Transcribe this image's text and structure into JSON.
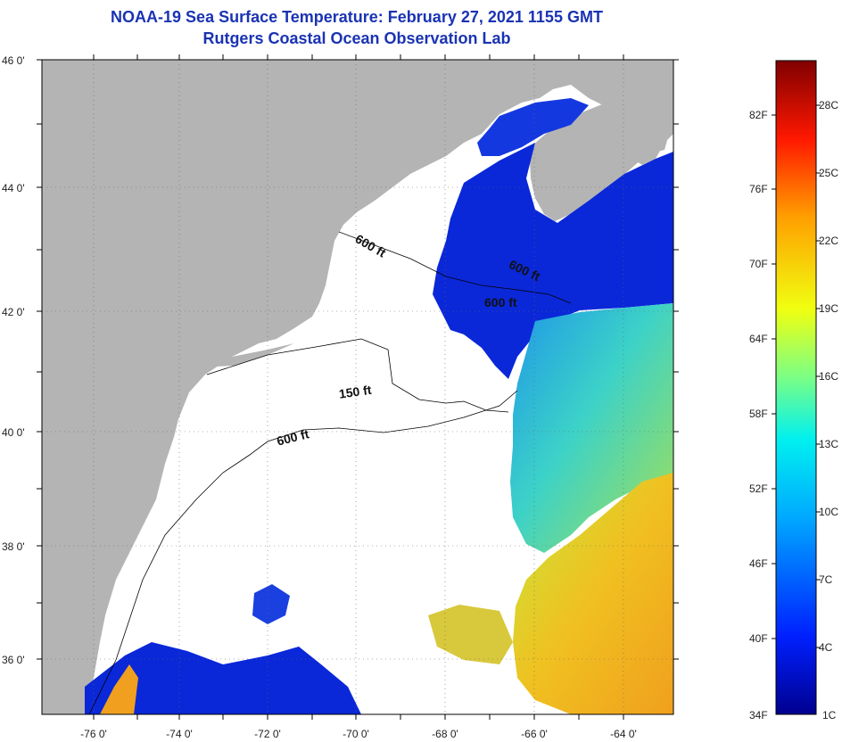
{
  "title": "NOAA-19 Sea Surface Temperature:  February 27, 2021 1155 GMT",
  "subtitle": "Rutgers Coastal Ocean Observation Lab",
  "map": {
    "lat_labels": [
      "46 0'",
      "44 0'",
      "42 0'",
      "40 0'",
      "38 0'",
      "36 0'"
    ],
    "lon_labels": [
      "-76 0'",
      "-74 0'",
      "-72 0'",
      "-70 0'",
      "-68 0'",
      "-66 0'",
      "-64 0'"
    ],
    "contours": [
      "600 ft",
      "600 ft",
      "600 ft",
      "150 ft",
      "600 ft"
    ],
    "colors": {
      "land": "#b4b4b4",
      "cloud": "#ffffff",
      "cold_water": "#0a28d8",
      "mid_water": "#3cd2c8",
      "warm_water": "#f0aa1e"
    }
  },
  "colorbar": {
    "fahrenheit": [
      "82F",
      "76F",
      "70F",
      "64F",
      "58F",
      "52F",
      "46F",
      "40F",
      "34F"
    ],
    "celsius": [
      "28C",
      "25C",
      "22C",
      "19C",
      "16C",
      "13C",
      "10C",
      "7C",
      "4C",
      "1C"
    ]
  }
}
